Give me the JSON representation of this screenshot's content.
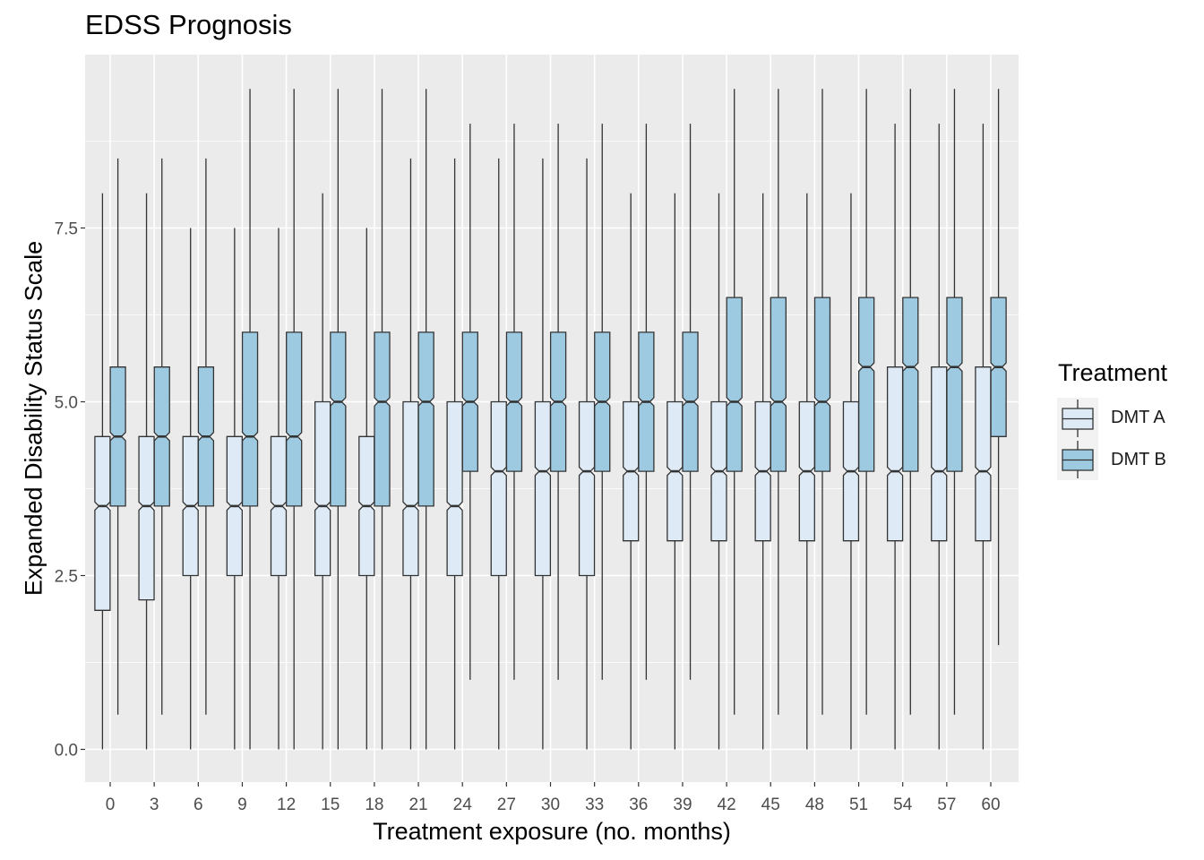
{
  "chart_data": {
    "type": "boxplot",
    "title": "EDSS Prognosis",
    "xlabel": "Treatment exposure (no. months)",
    "ylabel": "Expanded Disability Status Scale",
    "categories": [
      "0",
      "3",
      "6",
      "9",
      "12",
      "15",
      "18",
      "21",
      "24",
      "27",
      "30",
      "33",
      "36",
      "39",
      "42",
      "45",
      "48",
      "51",
      "54",
      "57",
      "60"
    ],
    "ylim": [
      -0.45,
      9.75
    ],
    "yticks": [
      0.0,
      2.5,
      5.0,
      7.5
    ],
    "ytick_labels": [
      "0.0",
      "2.5",
      "5.0",
      "7.5"
    ],
    "notched": true,
    "grid": true,
    "legend": {
      "title": "Treatment",
      "position": "right"
    },
    "series": [
      {
        "name": "DMT A",
        "color": "#deebf7",
        "boxes": [
          {
            "min": 0.0,
            "q1": 2.0,
            "median": 3.5,
            "q3": 4.5,
            "max": 8.0
          },
          {
            "min": 0.0,
            "q1": 2.15,
            "median": 3.5,
            "q3": 4.5,
            "max": 8.0
          },
          {
            "min": 0.0,
            "q1": 2.5,
            "median": 3.5,
            "q3": 4.5,
            "max": 7.5
          },
          {
            "min": 0.0,
            "q1": 2.5,
            "median": 3.5,
            "q3": 4.5,
            "max": 7.5
          },
          {
            "min": 0.0,
            "q1": 2.5,
            "median": 3.5,
            "q3": 4.5,
            "max": 7.5
          },
          {
            "min": 0.0,
            "q1": 2.5,
            "median": 3.5,
            "q3": 5.0,
            "max": 8.0
          },
          {
            "min": 0.0,
            "q1": 2.5,
            "median": 3.5,
            "q3": 4.5,
            "max": 7.5
          },
          {
            "min": 0.0,
            "q1": 2.5,
            "median": 3.5,
            "q3": 5.0,
            "max": 8.5
          },
          {
            "min": 0.0,
            "q1": 2.5,
            "median": 3.5,
            "q3": 5.0,
            "max": 8.5
          },
          {
            "min": 0.0,
            "q1": 2.5,
            "median": 4.0,
            "q3": 5.0,
            "max": 8.5
          },
          {
            "min": 0.0,
            "q1": 2.5,
            "median": 4.0,
            "q3": 5.0,
            "max": 8.5
          },
          {
            "min": 0.0,
            "q1": 2.5,
            "median": 4.0,
            "q3": 5.0,
            "max": 8.5
          },
          {
            "min": 0.0,
            "q1": 3.0,
            "median": 4.0,
            "q3": 5.0,
            "max": 8.0
          },
          {
            "min": 0.0,
            "q1": 3.0,
            "median": 4.0,
            "q3": 5.0,
            "max": 8.0
          },
          {
            "min": 0.0,
            "q1": 3.0,
            "median": 4.0,
            "q3": 5.0,
            "max": 8.0
          },
          {
            "min": 0.0,
            "q1": 3.0,
            "median": 4.0,
            "q3": 5.0,
            "max": 8.0
          },
          {
            "min": 0.0,
            "q1": 3.0,
            "median": 4.0,
            "q3": 5.0,
            "max": 8.0
          },
          {
            "min": 0.0,
            "q1": 3.0,
            "median": 4.0,
            "q3": 5.0,
            "max": 8.0
          },
          {
            "min": 0.0,
            "q1": 3.0,
            "median": 4.0,
            "q3": 5.5,
            "max": 9.0
          },
          {
            "min": 0.0,
            "q1": 3.0,
            "median": 4.0,
            "q3": 5.5,
            "max": 9.0
          },
          {
            "min": 0.0,
            "q1": 3.0,
            "median": 4.0,
            "q3": 5.5,
            "max": 9.0
          }
        ]
      },
      {
        "name": "DMT B",
        "color": "#9ecae1",
        "boxes": [
          {
            "min": 0.5,
            "q1": 3.5,
            "median": 4.5,
            "q3": 5.5,
            "max": 8.5
          },
          {
            "min": 0.5,
            "q1": 3.5,
            "median": 4.5,
            "q3": 5.5,
            "max": 8.5
          },
          {
            "min": 0.5,
            "q1": 3.5,
            "median": 4.5,
            "q3": 5.5,
            "max": 8.5
          },
          {
            "min": 0.0,
            "q1": 3.5,
            "median": 4.5,
            "q3": 6.0,
            "max": 9.5
          },
          {
            "min": 0.0,
            "q1": 3.5,
            "median": 4.5,
            "q3": 6.0,
            "max": 9.5
          },
          {
            "min": 0.0,
            "q1": 3.5,
            "median": 5.0,
            "q3": 6.0,
            "max": 9.5
          },
          {
            "min": 0.0,
            "q1": 3.5,
            "median": 5.0,
            "q3": 6.0,
            "max": 9.5
          },
          {
            "min": 0.0,
            "q1": 3.5,
            "median": 5.0,
            "q3": 6.0,
            "max": 9.5
          },
          {
            "min": 1.0,
            "q1": 4.0,
            "median": 5.0,
            "q3": 6.0,
            "max": 9.0
          },
          {
            "min": 1.0,
            "q1": 4.0,
            "median": 5.0,
            "q3": 6.0,
            "max": 9.0
          },
          {
            "min": 1.0,
            "q1": 4.0,
            "median": 5.0,
            "q3": 6.0,
            "max": 9.0
          },
          {
            "min": 1.0,
            "q1": 4.0,
            "median": 5.0,
            "q3": 6.0,
            "max": 9.0
          },
          {
            "min": 1.0,
            "q1": 4.0,
            "median": 5.0,
            "q3": 6.0,
            "max": 9.0
          },
          {
            "min": 1.0,
            "q1": 4.0,
            "median": 5.0,
            "q3": 6.0,
            "max": 9.0
          },
          {
            "min": 0.5,
            "q1": 4.0,
            "median": 5.0,
            "q3": 6.5,
            "max": 9.5
          },
          {
            "min": 0.5,
            "q1": 4.0,
            "median": 5.0,
            "q3": 6.5,
            "max": 9.5
          },
          {
            "min": 0.5,
            "q1": 4.0,
            "median": 5.0,
            "q3": 6.5,
            "max": 9.5
          },
          {
            "min": 0.5,
            "q1": 4.0,
            "median": 5.5,
            "q3": 6.5,
            "max": 9.5
          },
          {
            "min": 0.5,
            "q1": 4.0,
            "median": 5.5,
            "q3": 6.5,
            "max": 9.5
          },
          {
            "min": 0.5,
            "q1": 4.0,
            "median": 5.5,
            "q3": 6.5,
            "max": 9.5
          },
          {
            "min": 1.5,
            "q1": 4.5,
            "median": 5.5,
            "q3": 6.5,
            "max": 9.5
          }
        ]
      }
    ],
    "colors": {
      "panel": "#ebebeb",
      "grid": "#ffffff",
      "box_stroke": "#333333"
    }
  }
}
